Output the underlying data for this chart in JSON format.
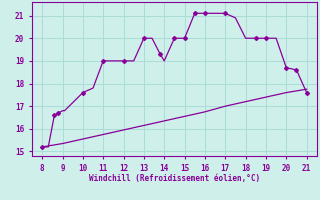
{
  "xlabel": "Windchill (Refroidissement éolien,°C)",
  "bg_color": "#cff0ea",
  "grid_color": "#aaddd8",
  "line_color": "#880099",
  "xlim": [
    7.5,
    21.5
  ],
  "ylim": [
    14.8,
    21.6
  ],
  "xticks": [
    8,
    9,
    10,
    11,
    12,
    13,
    14,
    15,
    16,
    17,
    18,
    19,
    20,
    21
  ],
  "yticks": [
    15,
    16,
    17,
    18,
    19,
    20,
    21
  ],
  "curve1_x": [
    8,
    8.3,
    8.6,
    8.8,
    9.0,
    9.1,
    10.0,
    10.5,
    11.0,
    11.5,
    12.0,
    12.5,
    13.0,
    13.4,
    13.8,
    14.0,
    14.5,
    15.0,
    15.5,
    16.0,
    16.5,
    17.0,
    17.5,
    18.0,
    18.5,
    19.0,
    19.5,
    20.0,
    20.5,
    21.0
  ],
  "curve1_y": [
    15.2,
    15.2,
    16.6,
    16.7,
    16.8,
    16.8,
    17.6,
    17.8,
    19.0,
    19.0,
    19.0,
    19.0,
    20.0,
    20.0,
    19.3,
    19.0,
    20.0,
    20.0,
    21.1,
    21.1,
    21.1,
    21.1,
    20.9,
    20.0,
    20.0,
    20.0,
    20.0,
    18.7,
    18.6,
    17.6
  ],
  "curve2_x": [
    8,
    9,
    10,
    11,
    12,
    13,
    14,
    15,
    16,
    17,
    18,
    19,
    20,
    21
  ],
  "curve2_y": [
    15.2,
    15.35,
    15.55,
    15.75,
    15.95,
    16.15,
    16.35,
    16.55,
    16.75,
    17.0,
    17.2,
    17.4,
    17.6,
    17.75
  ],
  "marker1_x": [
    8,
    8.6,
    8.8,
    10.0,
    11.0,
    12.0,
    13.0,
    13.8,
    14.5,
    15.0,
    15.5,
    16.0,
    17.0,
    18.5,
    19.0,
    20.0,
    20.5,
    21.0
  ],
  "marker1_y": [
    15.2,
    16.6,
    16.7,
    17.6,
    19.0,
    19.0,
    20.0,
    19.3,
    20.0,
    20.0,
    21.1,
    21.1,
    21.1,
    20.0,
    20.0,
    18.7,
    18.6,
    17.6
  ]
}
